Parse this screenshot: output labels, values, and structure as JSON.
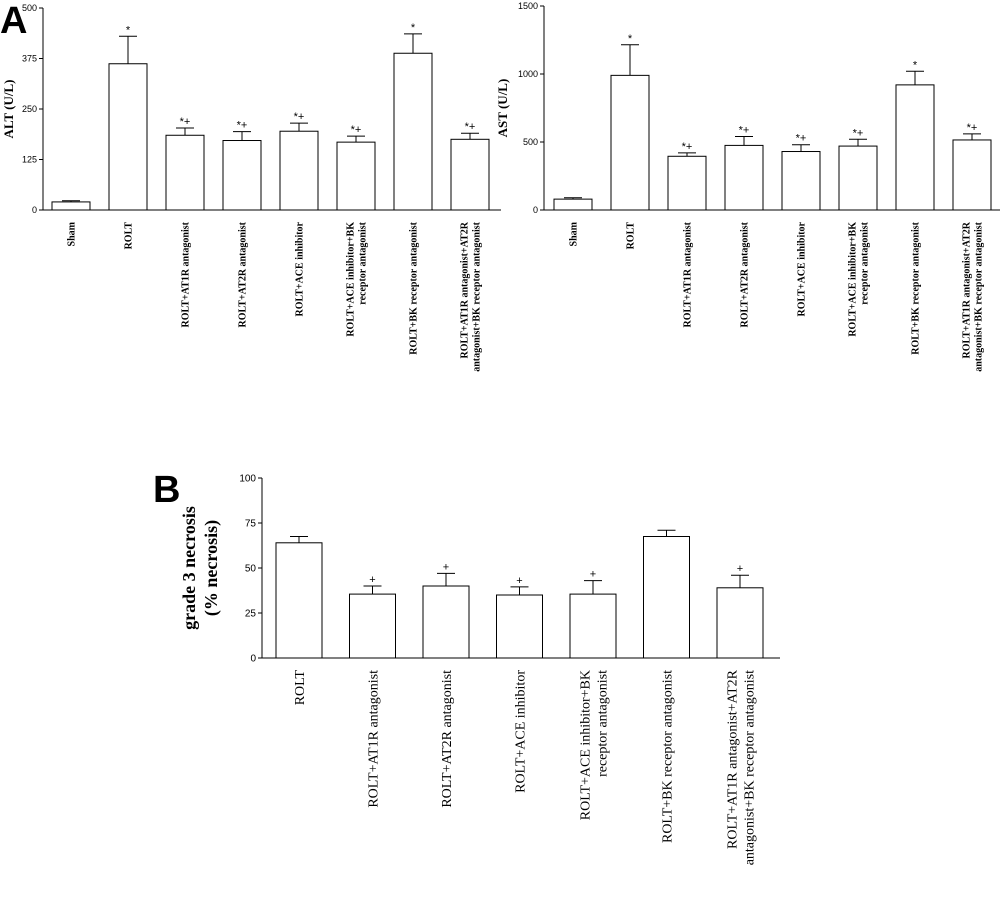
{
  "panel_labels": {
    "a": "A",
    "b": "B"
  },
  "chart_data": [
    {
      "id": "alt",
      "type": "bar",
      "ylabel": "ALT (U/L)",
      "ylim": [
        0,
        500
      ],
      "yticks": [
        "0",
        "125",
        "250",
        "375",
        "500"
      ],
      "categories": [
        [
          "Sham"
        ],
        [
          "ROLT"
        ],
        [
          "ROLT+AT1R antagonist"
        ],
        [
          "ROLT+AT2R antagonist"
        ],
        [
          "ROLT+ACE inhibitor"
        ],
        [
          "ROLT+ACE inhibitor+BK",
          "receptor antagonist"
        ],
        [
          "ROLT+BK receptor antagonist"
        ],
        [
          "ROLT+AT1R antagonist+AT2R",
          "antagonist+BK receptor antagonist"
        ]
      ],
      "values": [
        20,
        362,
        185,
        172,
        195,
        168,
        388,
        175
      ],
      "errors": [
        3,
        68,
        18,
        22,
        20,
        15,
        48,
        15
      ],
      "markers": [
        "",
        "*",
        "*+",
        "*+",
        "*+",
        "*+",
        "*",
        "*+"
      ]
    },
    {
      "id": "ast",
      "type": "bar",
      "ylabel": "AST (U/L)",
      "ylim": [
        0,
        1500
      ],
      "yticks": [
        "0",
        "500",
        "1000",
        "1500"
      ],
      "categories": [
        [
          "Sham"
        ],
        [
          "ROLT"
        ],
        [
          "ROLT+AT1R antagonist"
        ],
        [
          "ROLT+AT2R antagonist"
        ],
        [
          "ROLT+ACE inhibitor"
        ],
        [
          "ROLT+ACE inhibitor+BK",
          "receptor antagonist"
        ],
        [
          "ROLT+BK receptor antagonist"
        ],
        [
          "ROLT+AT1R antagonist+AT2R",
          "antagonist+BK receptor antagonist"
        ]
      ],
      "values": [
        80,
        990,
        395,
        475,
        430,
        470,
        920,
        515
      ],
      "errors": [
        10,
        225,
        25,
        65,
        50,
        50,
        100,
        45
      ],
      "markers": [
        "",
        "*",
        "*+",
        "*+",
        "*+",
        "*+",
        "*",
        "*+"
      ]
    },
    {
      "id": "necrosis",
      "type": "bar",
      "ylabel": [
        "grade 3 necrosis",
        "(% necrosis)"
      ],
      "ylim": [
        0,
        100
      ],
      "yticks": [
        "0",
        "25",
        "50",
        "75",
        "100"
      ],
      "categories": [
        [
          "ROLT"
        ],
        [
          "ROLT+AT1R antagonist"
        ],
        [
          "ROLT+AT2R antagonist"
        ],
        [
          "ROLT+ACE inhibitor"
        ],
        [
          "ROLT+ACE inhibitor+BK",
          "receptor antagonist"
        ],
        [
          "ROLT+BK receptor antagonist"
        ],
        [
          "ROLT+AT1R antagonist+AT2R",
          "antagonist+BK receptor antagonist"
        ]
      ],
      "values": [
        64,
        35.5,
        40,
        35,
        35.5,
        67.5,
        39
      ],
      "errors": [
        3.5,
        4.5,
        7,
        4.5,
        7.5,
        3.5,
        7
      ],
      "markers": [
        "",
        "+",
        "+",
        "+",
        "+",
        "",
        "+"
      ]
    }
  ]
}
